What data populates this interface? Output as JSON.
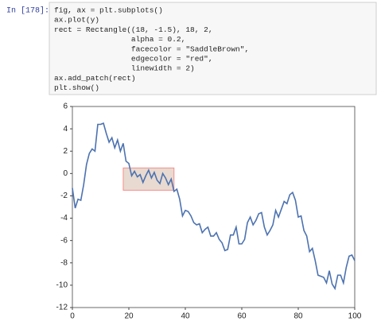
{
  "cell": {
    "prompt": "In [178]:",
    "code": [
      "fig, ax = plt.subplots()",
      "ax.plot(y)",
      "rect = Rectangle((18, -1.5), 18, 2,",
      "                 alpha = 0.2,",
      "                 facecolor = \"SaddleBrown\",",
      "                 edgecolor = \"red\",",
      "                 linewidth = 2)",
      "ax.add_patch(rect)",
      "plt.show()"
    ]
  },
  "chart_data": {
    "type": "line",
    "x": [
      0,
      1,
      2,
      3,
      4,
      5,
      6,
      7,
      8,
      9,
      10,
      11,
      12,
      13,
      14,
      15,
      16,
      17,
      18,
      19,
      20,
      21,
      22,
      23,
      24,
      25,
      26,
      27,
      28,
      29,
      30,
      31,
      32,
      33,
      34,
      35,
      36,
      37,
      38,
      39,
      40,
      41,
      42,
      43,
      44,
      45,
      46,
      47,
      48,
      49,
      50,
      51,
      52,
      53,
      54,
      55,
      56,
      57,
      58,
      59,
      60,
      61,
      62,
      63,
      64,
      65,
      66,
      67,
      68,
      69,
      70,
      71,
      72,
      73,
      74,
      75,
      76,
      77,
      78,
      79,
      80,
      81,
      82,
      83,
      84,
      85,
      86,
      87,
      88,
      89,
      90,
      91,
      92,
      93,
      94,
      95,
      96,
      97,
      98,
      99,
      100
    ],
    "series": [
      {
        "color": "#4c72b0",
        "values": [
          -1.3,
          -3.1,
          -2.3,
          -2.4,
          -1.0,
          0.8,
          1.8,
          2.2,
          2.0,
          4.4,
          4.4,
          4.5,
          3.6,
          2.8,
          3.2,
          2.3,
          3.0,
          2.0,
          2.7,
          1.1,
          0.9,
          -0.2,
          0.2,
          -0.3,
          -0.1,
          -0.8,
          -0.2,
          0.3,
          -0.4,
          0.1,
          -0.6,
          -0.9,
          0.0,
          -0.4,
          -1.0,
          -0.5,
          -1.6,
          -1.4,
          -2.3,
          -3.8,
          -3.3,
          -3.4,
          -3.8,
          -4.4,
          -4.6,
          -4.5,
          -5.3,
          -5.0,
          -4.8,
          -5.6,
          -5.6,
          -5.3,
          -5.9,
          -6.2,
          -6.9,
          -6.8,
          -5.5,
          -5.5,
          -4.8,
          -6.3,
          -6.3,
          -5.9,
          -4.4,
          -3.9,
          -4.6,
          -4.2,
          -3.6,
          -3.5,
          -4.8,
          -5.5,
          -5.1,
          -4.6,
          -3.3,
          -3.9,
          -3.2,
          -2.5,
          -2.7,
          -1.9,
          -1.7,
          -2.4,
          -3.9,
          -3.8,
          -5.1,
          -5.6,
          -7.0,
          -6.7,
          -7.8,
          -9.1,
          -9.2,
          -9.3,
          -9.8,
          -8.7,
          -9.9,
          -10.3,
          -9.1,
          -9.1,
          -9.8,
          -8.4,
          -7.4,
          -7.3,
          -7.8
        ]
      }
    ],
    "rectangle": {
      "x": 18,
      "y": -1.5,
      "width": 18,
      "height": 2,
      "facecolor": "#8b4513",
      "edgecolor": "#ff0000",
      "alpha": 0.2
    },
    "xlim": [
      0,
      100
    ],
    "xticks": [
      0,
      20,
      40,
      60,
      80,
      100
    ],
    "ylim": [
      -12,
      6
    ],
    "yticks": [
      -12,
      -10,
      -8,
      -6,
      -4,
      -2,
      0,
      2,
      4,
      6
    ]
  }
}
